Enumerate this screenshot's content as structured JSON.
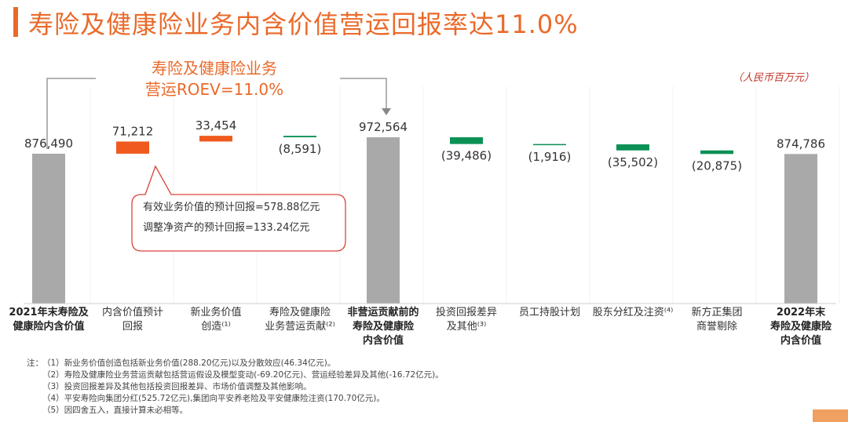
{
  "title": "寿险及健康险业务内含价值营运回报率达11.0%",
  "unit": "（人民币百万元）",
  "roev_label": [
    "寿险及健康险业务",
    "营运ROEV=11.0%"
  ],
  "callout": [
    "有效业务价值的预计回报=578.88亿元",
    "调整净资产的预计回报=133.24亿元"
  ],
  "colors": {
    "total": "#a9a9a9",
    "increase": "#f05a1e",
    "decrease": "#0c9155",
    "accent": "#ea6a2a",
    "callout_border": "#d9443a"
  },
  "chart_data": {
    "type": "bar",
    "subtype": "waterfall",
    "title": "",
    "categories": [
      [
        "2021年末寿险及",
        "健康险内含价值"
      ],
      [
        "内含价值预计",
        "回报"
      ],
      [
        "新业务价值",
        "创造⁽¹⁾"
      ],
      [
        "寿险及健康险",
        "业务营运贡献⁽²⁾"
      ],
      [
        "非营运贡献前的",
        "寿险及健康险",
        "内含价值"
      ],
      [
        "投资回报差异",
        "及其他⁽³⁾"
      ],
      [
        "员工持股计划"
      ],
      [
        "股东分红及注资⁽⁴⁾"
      ],
      [
        "新方正集团",
        "商誉剔除"
      ],
      [
        "2022年末",
        "寿险及健康险",
        "内含价值"
      ]
    ],
    "values": [
      876490,
      71212,
      33454,
      -8591,
      972564,
      -39486,
      -1916,
      -35502,
      -20875,
      874786
    ],
    "kinds": [
      "total",
      "increase",
      "increase",
      "decrease",
      "total",
      "decrease",
      "decrease",
      "decrease",
      "decrease",
      "total"
    ],
    "data_labels": [
      "876,490",
      "71,212",
      "33,454",
      "(8,591)",
      "972,564",
      "(39,486)",
      "(1,916)",
      "(35,502)",
      "(20,875)",
      "874,786"
    ],
    "bold_categories": [
      0,
      4,
      9
    ]
  },
  "notes": [
    {
      "label": "注：",
      "num": "（1）",
      "text": "新业务价值创造包括新业务价值(288.20亿元)以及分散效应(46.34亿元)。"
    },
    {
      "label": "",
      "num": "（2）",
      "text": "寿险及健康险业务营运贡献包括营运假设及模型变动(-69.20亿元)、营运经验差异及其他(-16.72亿元)。"
    },
    {
      "label": "",
      "num": "（3）",
      "text": "投资回报差异及其他包括投资回报差异、市场价值调整及其他影响。"
    },
    {
      "label": "",
      "num": "（4）",
      "text": "平安寿险向集团分红(525.72亿元),集团向平安养老险及平安健康险注资(170.70亿元)。"
    },
    {
      "label": "",
      "num": "（5）",
      "text": "因四舍五入，直接计算未必相等。"
    }
  ]
}
